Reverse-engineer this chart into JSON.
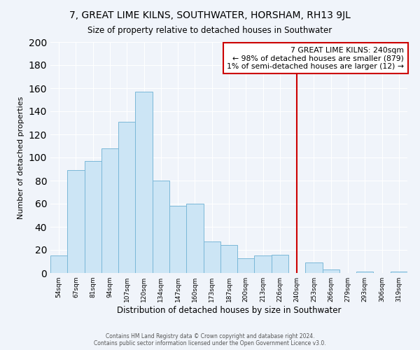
{
  "title": "7, GREAT LIME KILNS, SOUTHWATER, HORSHAM, RH13 9JL",
  "subtitle": "Size of property relative to detached houses in Southwater",
  "xlabel": "Distribution of detached houses by size in Southwater",
  "ylabel": "Number of detached properties",
  "footer_line1": "Contains HM Land Registry data © Crown copyright and database right 2024.",
  "footer_line2": "Contains public sector information licensed under the Open Government Licence v3.0.",
  "bin_labels": [
    "54sqm",
    "67sqm",
    "81sqm",
    "94sqm",
    "107sqm",
    "120sqm",
    "134sqm",
    "147sqm",
    "160sqm",
    "173sqm",
    "187sqm",
    "200sqm",
    "213sqm",
    "226sqm",
    "240sqm",
    "253sqm",
    "266sqm",
    "279sqm",
    "293sqm",
    "306sqm",
    "319sqm"
  ],
  "bar_heights": [
    15,
    89,
    97,
    108,
    131,
    157,
    80,
    58,
    60,
    27,
    24,
    13,
    15,
    16,
    0,
    9,
    3,
    0,
    1,
    0,
    1
  ],
  "bar_color": "#cce5f5",
  "bar_edge_color": "#7ab8d8",
  "vline_color": "#cc0000",
  "annotation_title": "7 GREAT LIME KILNS: 240sqm",
  "annotation_line1": "← 98% of detached houses are smaller (879)",
  "annotation_line2": "1% of semi-detached houses are larger (12) →",
  "annotation_box_color": "white",
  "annotation_box_edge_color": "#cc0000",
  "ylim": [
    0,
    200
  ],
  "yticks": [
    0,
    20,
    40,
    60,
    80,
    100,
    120,
    140,
    160,
    180,
    200
  ],
  "background_color": "#f0f4fa"
}
